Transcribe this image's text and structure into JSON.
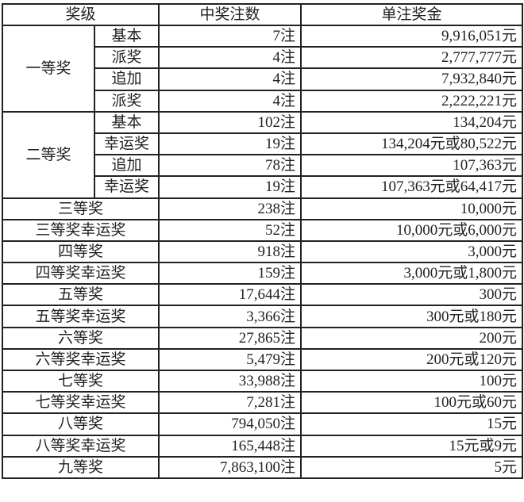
{
  "header": {
    "level": "奖级",
    "count": "中奖注数",
    "prize": "单注奖金"
  },
  "groups": [
    {
      "name": "一等奖",
      "rows": [
        {
          "sub": "基本",
          "count": "7注",
          "prize": "9,916,051元"
        },
        {
          "sub": "派奖",
          "count": "4注",
          "prize": "2,777,777元"
        },
        {
          "sub": "追加",
          "count": "4注",
          "prize": "7,932,840元"
        },
        {
          "sub": "派奖",
          "count": "4注",
          "prize": "2,222,221元"
        }
      ]
    },
    {
      "name": "二等奖",
      "rows": [
        {
          "sub": "基本",
          "count": "102注",
          "prize": "134,204元"
        },
        {
          "sub": "幸运奖",
          "count": "19注",
          "prize": "134,204元或80,522元"
        },
        {
          "sub": "追加",
          "count": "78注",
          "prize": "107,363元"
        },
        {
          "sub": "幸运奖",
          "count": "19注",
          "prize": "107,363元或64,417元"
        }
      ]
    }
  ],
  "rows": [
    {
      "level": "三等奖",
      "count": "238注",
      "prize": "10,000元"
    },
    {
      "level": "三等奖幸运奖",
      "count": "52注",
      "prize": "10,000元或6,000元"
    },
    {
      "level": "四等奖",
      "count": "918注",
      "prize": "3,000元"
    },
    {
      "level": "四等奖幸运奖",
      "count": "159注",
      "prize": "3,000元或1,800元"
    },
    {
      "level": "五等奖",
      "count": "17,644注",
      "prize": "300元"
    },
    {
      "level": "五等奖幸运奖",
      "count": "3,366注",
      "prize": "300元或180元"
    },
    {
      "level": "六等奖",
      "count": "27,865注",
      "prize": "200元"
    },
    {
      "level": "六等奖幸运奖",
      "count": "5,479注",
      "prize": "200元或120元"
    },
    {
      "level": "七等奖",
      "count": "33,988注",
      "prize": "100元"
    },
    {
      "level": "七等奖幸运奖",
      "count": "7,281注",
      "prize": "100元或60元"
    },
    {
      "level": "八等奖",
      "count": "794,050注",
      "prize": "15元"
    },
    {
      "level": "八等奖幸运奖",
      "count": "165,448注",
      "prize": "15元或9元"
    },
    {
      "level": "九等奖",
      "count": "7,863,100注",
      "prize": "5元"
    }
  ]
}
